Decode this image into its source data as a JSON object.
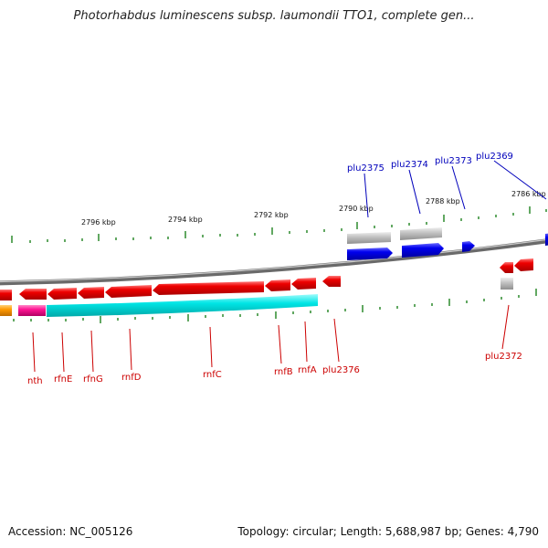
{
  "title": "Photorhabdus luminescens subsp. laumondii TTO1, complete gen...",
  "footer": {
    "accession": "Accession: NC_005126",
    "summary": "Topology: circular; Length: 5,688,987 bp; Genes: 4,790"
  },
  "colors": {
    "backbone": "#7a7a7a",
    "tick": "#2e8b2e",
    "gene_forward": "#0000ee",
    "gene_reverse": "#ee0000",
    "gene_grey": "#b8b8b8",
    "gene_cyan": "#00e5e5",
    "gene_magenta": "#ff1493",
    "gene_orange": "#ff9900",
    "label_forward": "#0000bb",
    "label_reverse": "#cc0000"
  },
  "scale_labels": [
    "2796 kbp",
    "2794 kbp",
    "2792 kbp",
    "2790 kbp",
    "2788 kbp",
    "2786 kbp"
  ],
  "gene_labels_top": [
    "plu2375",
    "plu2374",
    "plu2373",
    "plu2369"
  ],
  "gene_labels_bottom": [
    "nth",
    "rfnE",
    "rfnG",
    "rnfD",
    "rnfC",
    "rnfB",
    "rnfA",
    "plu2376",
    "plu2372"
  ]
}
